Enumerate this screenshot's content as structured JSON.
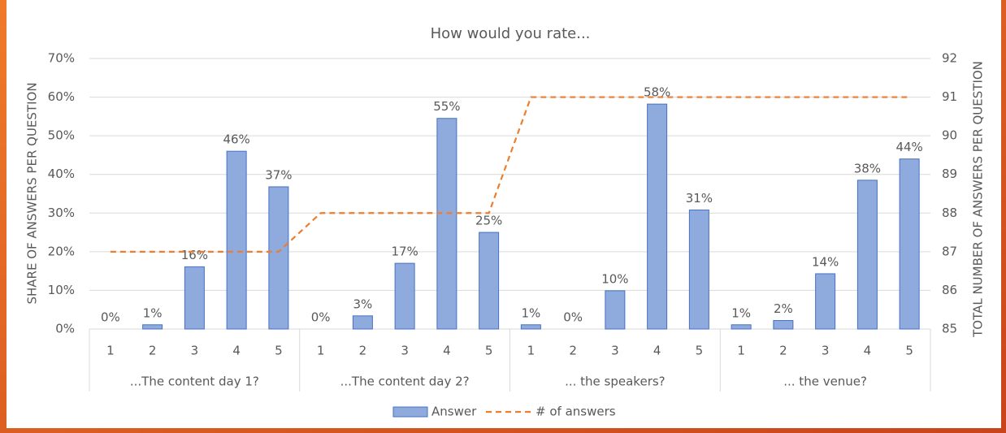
{
  "chart_data": {
    "type": "combo",
    "title": "How would you rate...",
    "ylabel": "SHARE OF ANSWERS PER QUESTION",
    "y2label": "TOTAL NUMBER OF ANSWERS PER QUESTION",
    "categories": [
      "1",
      "2",
      "3",
      "4",
      "5",
      "1",
      "2",
      "3",
      "4",
      "5",
      "1",
      "2",
      "3",
      "4",
      "5",
      "1",
      "2",
      "3",
      "4",
      "5"
    ],
    "groups": [
      "...The content day 1?",
      "...The content day 2?",
      "... the speakers?",
      "... the venue?"
    ],
    "series": [
      {
        "name": "Answer",
        "type": "bar",
        "color": "#8faadc",
        "values": [
          0,
          1.1,
          16.1,
          46,
          36.8,
          0,
          3.4,
          17,
          54.5,
          25,
          1.1,
          0,
          9.9,
          58.2,
          30.8,
          1.1,
          2.2,
          14.3,
          38.5,
          44
        ],
        "value_labels": [
          "0%",
          "1%",
          "16%",
          "46%",
          "37%",
          "0%",
          "3%",
          "17%",
          "55%",
          "25%",
          "1%",
          "0%",
          "10%",
          "58%",
          "31%",
          "1%",
          "2%",
          "14%",
          "38%",
          "44%"
        ]
      },
      {
        "name": "# of answers",
        "type": "line",
        "axis": "y2",
        "color": "#ed7d31",
        "values": [
          87,
          87,
          87,
          87,
          87,
          88,
          88,
          88,
          88,
          88,
          91,
          91,
          91,
          91,
          91,
          91,
          91,
          91,
          91,
          91
        ]
      }
    ],
    "ylim": [
      0,
      70
    ],
    "yticks": [
      {
        "value": 0,
        "label": "0%"
      },
      {
        "value": 10,
        "label": "10%"
      },
      {
        "value": 20,
        "label": "20%"
      },
      {
        "value": 30,
        "label": "30%"
      },
      {
        "value": 40,
        "label": "40%"
      },
      {
        "value": 50,
        "label": "50%"
      },
      {
        "value": 60,
        "label": "60%"
      },
      {
        "value": 70,
        "label": "70%"
      }
    ],
    "y2lim": [
      85,
      92
    ],
    "y2ticks": [
      85,
      86,
      87,
      88,
      89,
      90,
      91,
      92
    ],
    "grid": true,
    "legend": "bottom"
  }
}
